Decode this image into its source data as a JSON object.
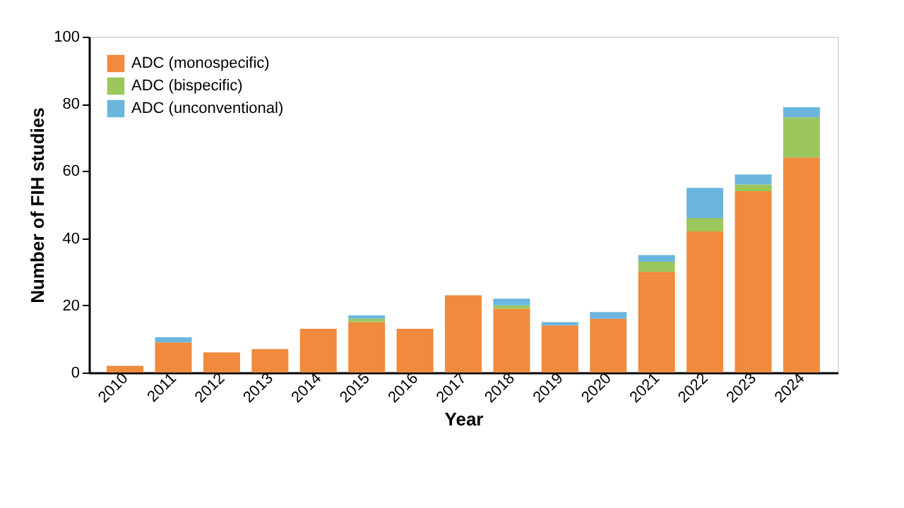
{
  "chart_data": {
    "type": "bar",
    "stacked": true,
    "xlabel": "Year",
    "ylabel": "Number of FIH studies",
    "categories": [
      "2010",
      "2011",
      "2012",
      "2013",
      "2014",
      "2015",
      "2016",
      "2017",
      "2018",
      "2019",
      "2020",
      "2021",
      "2022",
      "2023",
      "2024"
    ],
    "series": [
      {
        "name": "ADC (monospecific)",
        "color": "#f08a3c",
        "values": [
          2,
          9,
          6,
          7,
          13,
          15,
          13,
          23,
          19,
          14,
          16,
          30,
          42,
          54,
          64
        ]
      },
      {
        "name": "ADC (bispecific)",
        "color": "#9cc75c",
        "values": [
          0,
          0,
          0,
          0,
          0,
          1,
          0,
          0,
          1,
          0,
          0,
          3,
          4,
          2,
          12
        ]
      },
      {
        "name": "ADC (unconventional)",
        "color": "#6cb6de",
        "values": [
          0,
          1.5,
          0,
          0,
          0,
          1,
          0,
          0,
          2,
          1,
          2,
          2,
          9,
          3,
          3
        ]
      }
    ],
    "ylim": [
      0,
      100
    ],
    "yticks": [
      0,
      20,
      40,
      60,
      80,
      100
    ],
    "grid": false,
    "legend": "top left"
  }
}
